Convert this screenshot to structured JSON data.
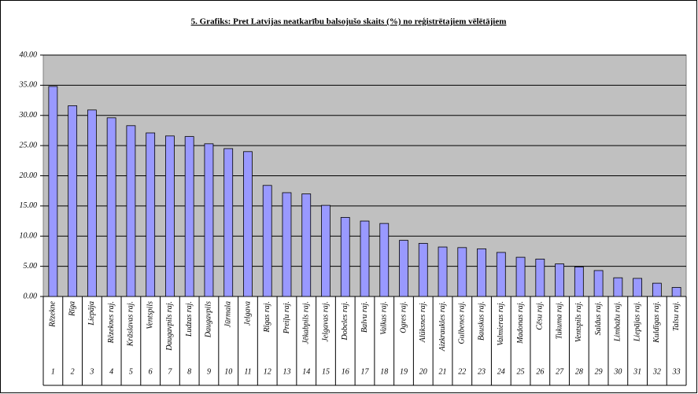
{
  "chart_data": {
    "type": "bar",
    "title": "5. Grafiks: Pret Latvijas neatkarību balsojušo skaits (%) no reģistrētajiem vēlētājiem",
    "categories": [
      "Rēzekne",
      "Rīga",
      "Liepāja",
      "Rēzeknes raj.",
      "Krāslavas raj.",
      "Ventspils",
      "Daugavpils raj.",
      "Ludzas raj.",
      "Daugavpils",
      "Jūrmala",
      "Jelgava",
      "Rīgas raj.",
      "Preiļu raj.",
      "Jēkabpils raj.",
      "Jelgavas raj.",
      "Dobeles raj.",
      "Balvu raj.",
      "Valkas raj.",
      "Ogres raj.",
      "Alūksnes raj.",
      "Aizkraukles raj.",
      "Gulbenes raj.",
      "Bauskas raj.",
      "Valmieras raj.",
      "Madonas raj.",
      "Cēsu raj.",
      "Tukuma raj.",
      "Ventspils raj.",
      "Saldus raj.",
      "Limbažu raj.",
      "Liepājas raj.",
      "Kuldīgas raj.",
      "Talsu raj."
    ],
    "category_numbers": [
      1,
      2,
      3,
      4,
      5,
      6,
      7,
      8,
      9,
      10,
      11,
      12,
      13,
      14,
      15,
      16,
      17,
      18,
      19,
      20,
      21,
      22,
      23,
      24,
      25,
      26,
      27,
      28,
      29,
      30,
      31,
      32,
      33
    ],
    "values": [
      34.8,
      31.6,
      30.9,
      29.6,
      28.3,
      27.1,
      26.6,
      26.5,
      25.3,
      24.5,
      24.0,
      18.4,
      17.2,
      17.0,
      15.1,
      13.1,
      12.5,
      12.1,
      9.3,
      8.8,
      8.2,
      8.1,
      7.9,
      7.3,
      6.5,
      6.2,
      5.4,
      4.9,
      4.3,
      3.1,
      3.0,
      2.2,
      1.5
    ],
    "color": "#9999ff",
    "ylim": [
      0,
      40
    ],
    "yticks": [
      {
        "value": 0,
        "label": "0.00"
      },
      {
        "value": 5,
        "label": "5.00"
      },
      {
        "value": 10,
        "label": "10.00"
      },
      {
        "value": 15,
        "label": "15.00"
      },
      {
        "value": 20,
        "label": "20.00"
      },
      {
        "value": 25,
        "label": "25.00"
      },
      {
        "value": 30,
        "label": "30.00"
      },
      {
        "value": 35,
        "label": "35.00"
      },
      {
        "value": 40,
        "label": "40.00"
      }
    ],
    "grid": true
  }
}
